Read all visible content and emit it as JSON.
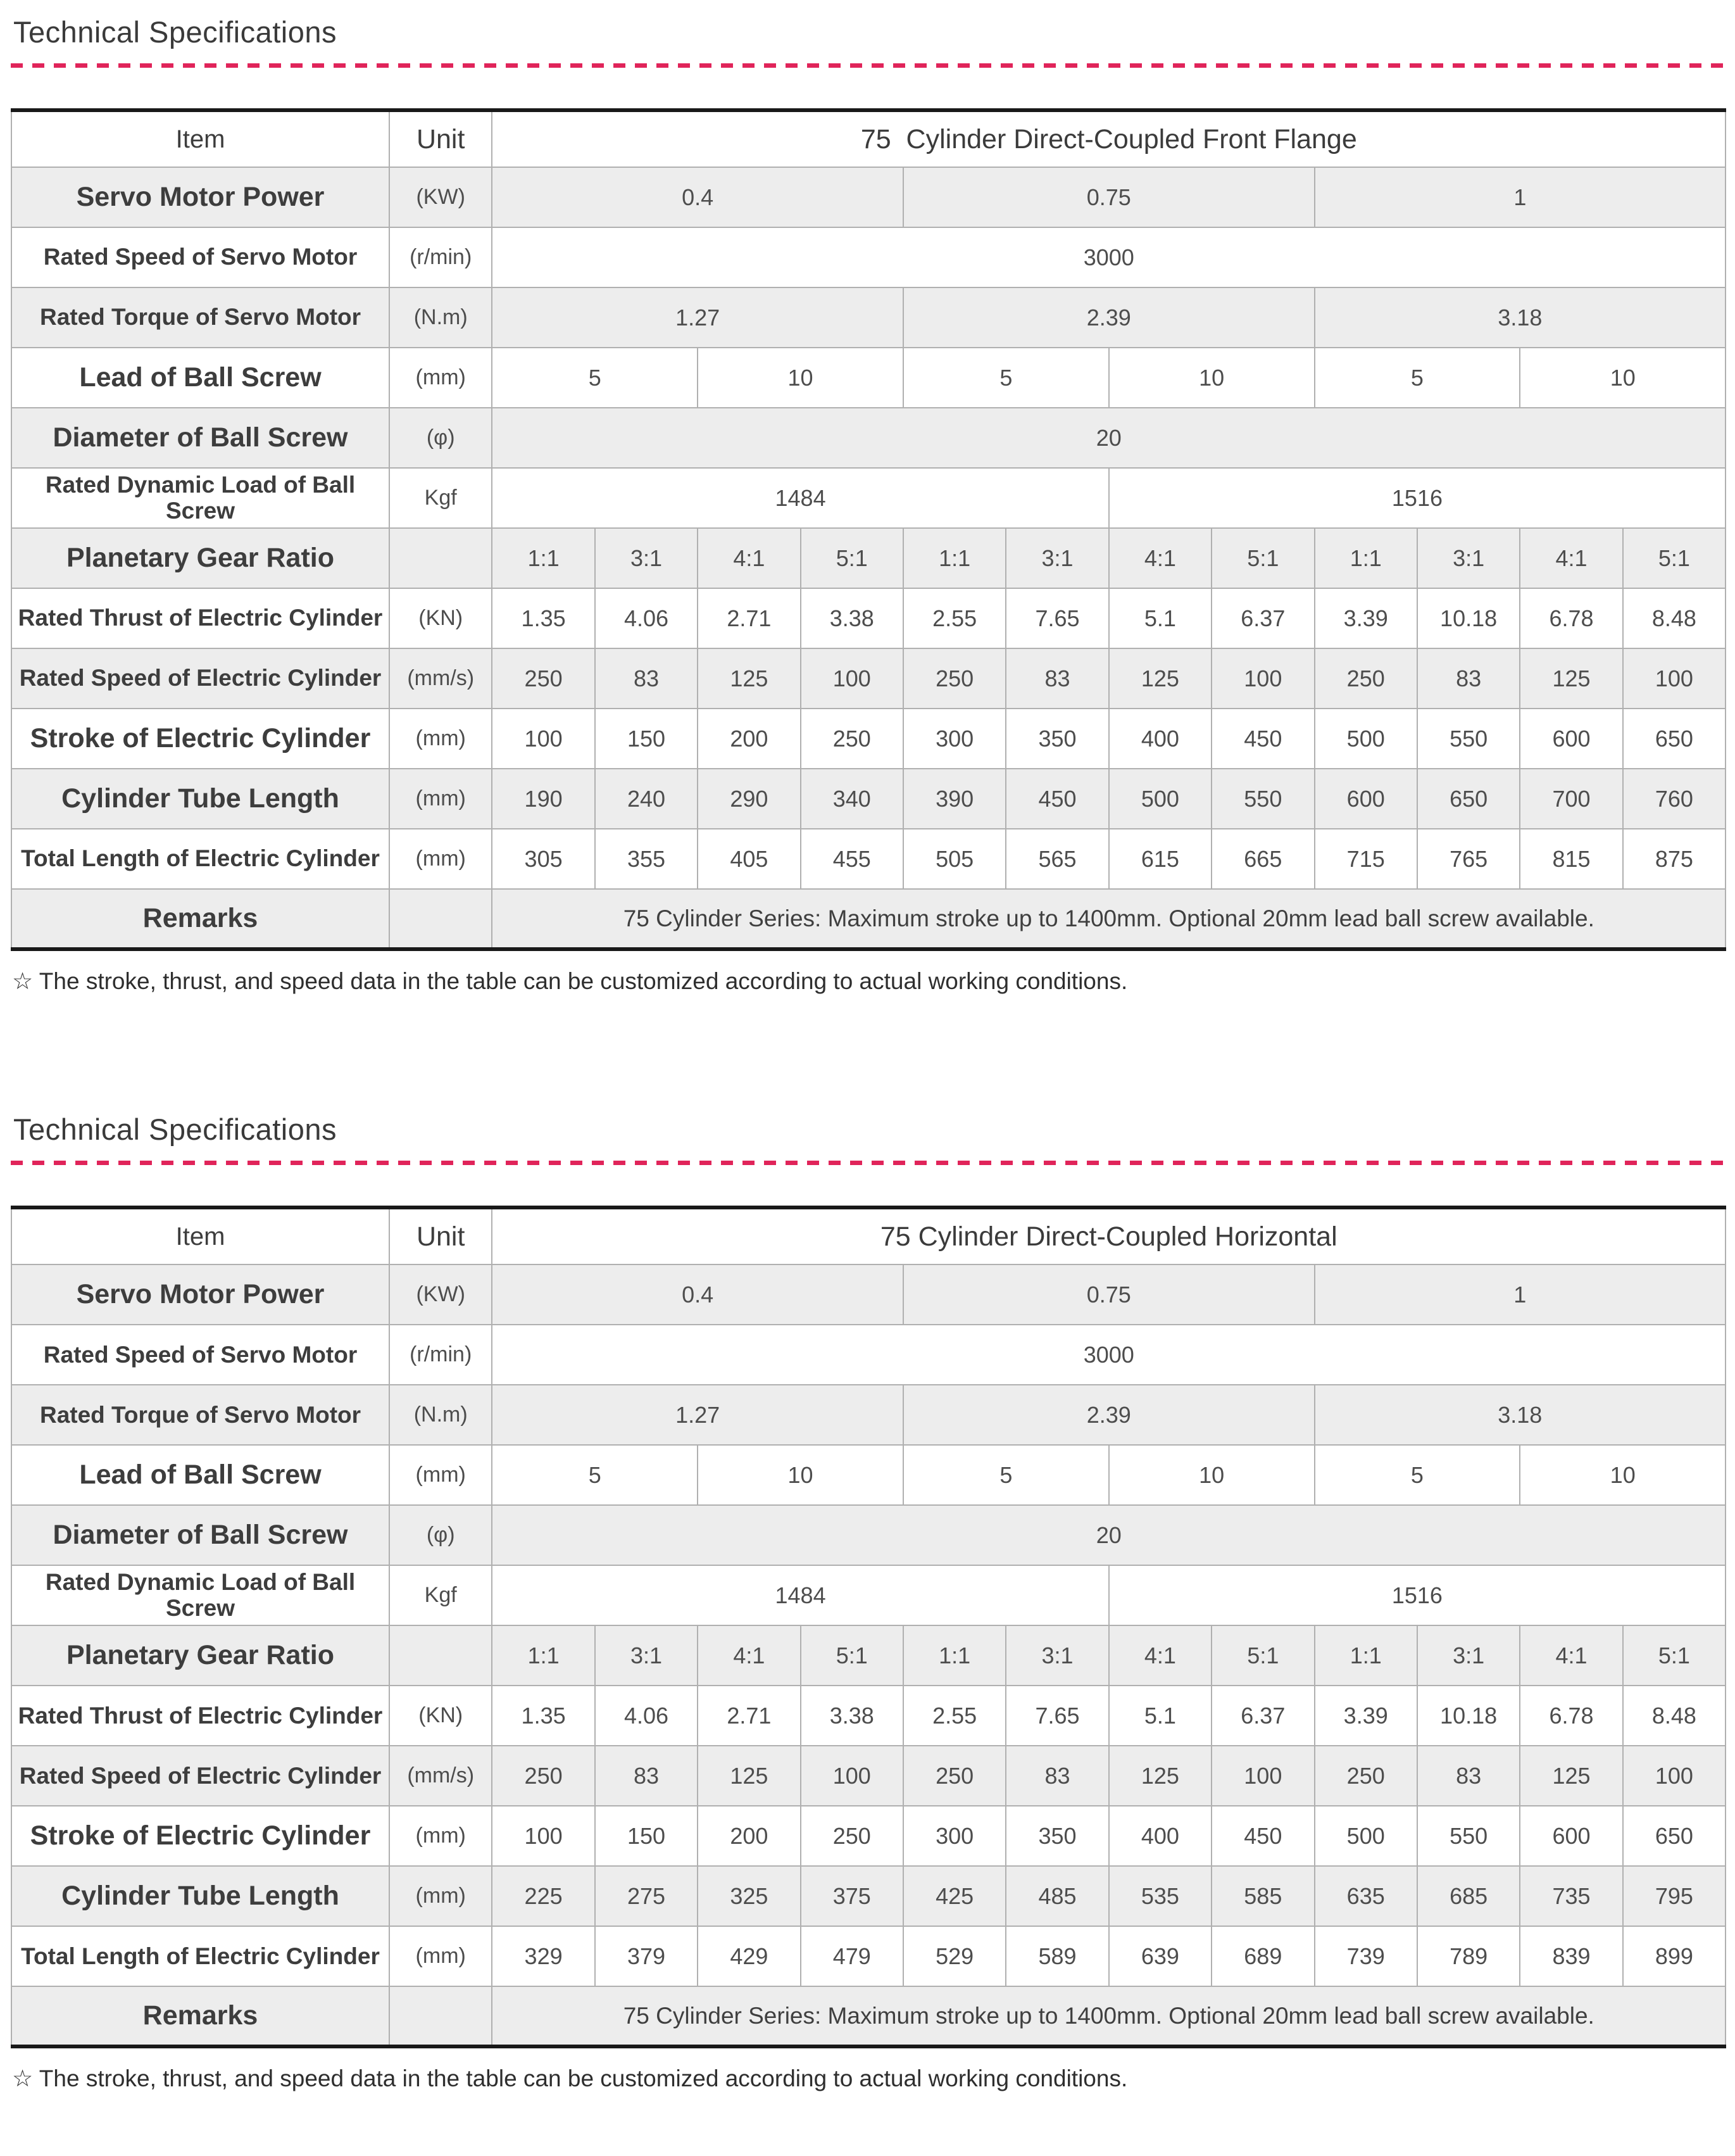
{
  "accent_color": "#e0245a",
  "tables": [
    {
      "section_title": "Technical Specifications",
      "footnote": "☆ The stroke, thrust, and speed data in the table can be customized according to actual working conditions.",
      "header": {
        "item_label": "Item",
        "unit_label": "Unit",
        "series_title": "75  Cylinder Direct-Coupled Front Flange"
      },
      "rows": [
        {
          "label": "Servo Motor Power",
          "size": "lg",
          "unit": "(KW)",
          "cells": [
            {
              "text": "0.4",
              "span": 4
            },
            {
              "text": "0.75",
              "span": 4
            },
            {
              "text": "1",
              "span": 4
            }
          ]
        },
        {
          "label": "Rated Speed of Servo Motor",
          "size": "md",
          "unit": "(r/min)",
          "cells": [
            {
              "text": "3000",
              "span": 12
            }
          ]
        },
        {
          "label": "Rated Torque of Servo Motor",
          "size": "md",
          "unit": "(N.m)",
          "cells": [
            {
              "text": "1.27",
              "span": 4
            },
            {
              "text": "2.39",
              "span": 4
            },
            {
              "text": "3.18",
              "span": 4
            }
          ]
        },
        {
          "label": "Lead of Ball Screw",
          "size": "lg",
          "unit": "(mm)",
          "cells": [
            {
              "text": "5",
              "span": 2
            },
            {
              "text": "10",
              "span": 2
            },
            {
              "text": "5",
              "span": 2
            },
            {
              "text": "10",
              "span": 2
            },
            {
              "text": "5",
              "span": 2
            },
            {
              "text": "10",
              "span": 2
            }
          ]
        },
        {
          "label": "Diameter of Ball Screw",
          "size": "lg",
          "unit": "(φ)",
          "cells": [
            {
              "text": "20",
              "span": 12
            }
          ]
        },
        {
          "label": "Rated Dynamic Load of Ball Screw",
          "size": "md",
          "unit": "Kgf",
          "cells": [
            {
              "text": "1484",
              "span": 6
            },
            {
              "text": "1516",
              "span": 6
            }
          ]
        },
        {
          "label": "Planetary Gear Ratio",
          "size": "lg",
          "unit": "",
          "cells": [
            {
              "text": "1:1",
              "span": 1
            },
            {
              "text": "3:1",
              "span": 1
            },
            {
              "text": "4:1",
              "span": 1
            },
            {
              "text": "5:1",
              "span": 1
            },
            {
              "text": "1:1",
              "span": 1
            },
            {
              "text": "3:1",
              "span": 1
            },
            {
              "text": "4:1",
              "span": 1
            },
            {
              "text": "5:1",
              "span": 1
            },
            {
              "text": "1:1",
              "span": 1
            },
            {
              "text": "3:1",
              "span": 1
            },
            {
              "text": "4:1",
              "span": 1
            },
            {
              "text": "5:1",
              "span": 1
            }
          ]
        },
        {
          "label": "Rated Thrust of Electric Cylinder",
          "size": "md",
          "unit": "(KN)",
          "cells": [
            {
              "text": "1.35",
              "span": 1
            },
            {
              "text": "4.06",
              "span": 1
            },
            {
              "text": "2.71",
              "span": 1
            },
            {
              "text": "3.38",
              "span": 1
            },
            {
              "text": "2.55",
              "span": 1
            },
            {
              "text": "7.65",
              "span": 1
            },
            {
              "text": "5.1",
              "span": 1
            },
            {
              "text": "6.37",
              "span": 1
            },
            {
              "text": "3.39",
              "span": 1
            },
            {
              "text": "10.18",
              "span": 1
            },
            {
              "text": "6.78",
              "span": 1
            },
            {
              "text": "8.48",
              "span": 1
            }
          ]
        },
        {
          "label": "Rated Speed of Electric Cylinder",
          "size": "md",
          "unit": "(mm/s)",
          "cells": [
            {
              "text": "250",
              "span": 1
            },
            {
              "text": "83",
              "span": 1
            },
            {
              "text": "125",
              "span": 1
            },
            {
              "text": "100",
              "span": 1
            },
            {
              "text": "250",
              "span": 1
            },
            {
              "text": "83",
              "span": 1
            },
            {
              "text": "125",
              "span": 1
            },
            {
              "text": "100",
              "span": 1
            },
            {
              "text": "250",
              "span": 1
            },
            {
              "text": "83",
              "span": 1
            },
            {
              "text": "125",
              "span": 1
            },
            {
              "text": "100",
              "span": 1
            }
          ]
        },
        {
          "label": "Stroke of Electric Cylinder",
          "size": "lg",
          "unit": "(mm)",
          "cells": [
            {
              "text": "100",
              "span": 1
            },
            {
              "text": "150",
              "span": 1
            },
            {
              "text": "200",
              "span": 1
            },
            {
              "text": "250",
              "span": 1
            },
            {
              "text": "300",
              "span": 1
            },
            {
              "text": "350",
              "span": 1
            },
            {
              "text": "400",
              "span": 1
            },
            {
              "text": "450",
              "span": 1
            },
            {
              "text": "500",
              "span": 1
            },
            {
              "text": "550",
              "span": 1
            },
            {
              "text": "600",
              "span": 1
            },
            {
              "text": "650",
              "span": 1
            }
          ]
        },
        {
          "label": "Cylinder Tube Length",
          "size": "lg",
          "unit": "(mm)",
          "cells": [
            {
              "text": "190",
              "span": 1
            },
            {
              "text": "240",
              "span": 1
            },
            {
              "text": "290",
              "span": 1
            },
            {
              "text": "340",
              "span": 1
            },
            {
              "text": "390",
              "span": 1
            },
            {
              "text": "450",
              "span": 1
            },
            {
              "text": "500",
              "span": 1
            },
            {
              "text": "550",
              "span": 1
            },
            {
              "text": "600",
              "span": 1
            },
            {
              "text": "650",
              "span": 1
            },
            {
              "text": "700",
              "span": 1
            },
            {
              "text": "760",
              "span": 1
            }
          ]
        },
        {
          "label": "Total Length of Electric Cylinder",
          "size": "md",
          "unit": "(mm)",
          "cells": [
            {
              "text": "305",
              "span": 1
            },
            {
              "text": "355",
              "span": 1
            },
            {
              "text": "405",
              "span": 1
            },
            {
              "text": "455",
              "span": 1
            },
            {
              "text": "505",
              "span": 1
            },
            {
              "text": "565",
              "span": 1
            },
            {
              "text": "615",
              "span": 1
            },
            {
              "text": "665",
              "span": 1
            },
            {
              "text": "715",
              "span": 1
            },
            {
              "text": "765",
              "span": 1
            },
            {
              "text": "815",
              "span": 1
            },
            {
              "text": "875",
              "span": 1
            }
          ]
        }
      ],
      "remarks_label": "Remarks",
      "remarks_text": "75 Cylinder Series: Maximum stroke up to 1400mm. Optional 20mm lead ball screw available."
    },
    {
      "section_title": "Technical Specifications",
      "footnote": "☆ The stroke, thrust, and speed data in the table can be customized according to actual working conditions.",
      "header": {
        "item_label": "Item",
        "unit_label": "Unit",
        "series_title": "75 Cylinder Direct-Coupled Horizontal"
      },
      "rows": [
        {
          "label": "Servo Motor Power",
          "size": "lg",
          "unit": "(KW)",
          "cells": [
            {
              "text": "0.4",
              "span": 4
            },
            {
              "text": "0.75",
              "span": 4
            },
            {
              "text": "1",
              "span": 4
            }
          ]
        },
        {
          "label": "Rated Speed of Servo Motor",
          "size": "md",
          "unit": "(r/min)",
          "cells": [
            {
              "text": "3000",
              "span": 12
            }
          ]
        },
        {
          "label": "Rated Torque of Servo Motor",
          "size": "md",
          "unit": "(N.m)",
          "cells": [
            {
              "text": "1.27",
              "span": 4
            },
            {
              "text": "2.39",
              "span": 4
            },
            {
              "text": "3.18",
              "span": 4
            }
          ]
        },
        {
          "label": "Lead of Ball Screw",
          "size": "lg",
          "unit": "(mm)",
          "cells": [
            {
              "text": "5",
              "span": 2
            },
            {
              "text": "10",
              "span": 2
            },
            {
              "text": "5",
              "span": 2
            },
            {
              "text": "10",
              "span": 2
            },
            {
              "text": "5",
              "span": 2
            },
            {
              "text": "10",
              "span": 2
            }
          ]
        },
        {
          "label": "Diameter of Ball Screw",
          "size": "lg",
          "unit": "(φ)",
          "cells": [
            {
              "text": "20",
              "span": 12
            }
          ]
        },
        {
          "label": "Rated Dynamic Load of Ball Screw",
          "size": "md",
          "unit": "Kgf",
          "cells": [
            {
              "text": "1484",
              "span": 6
            },
            {
              "text": "1516",
              "span": 6
            }
          ]
        },
        {
          "label": "Planetary Gear Ratio",
          "size": "lg",
          "unit": "",
          "cells": [
            {
              "text": "1:1",
              "span": 1
            },
            {
              "text": "3:1",
              "span": 1
            },
            {
              "text": "4:1",
              "span": 1
            },
            {
              "text": "5:1",
              "span": 1
            },
            {
              "text": "1:1",
              "span": 1
            },
            {
              "text": "3:1",
              "span": 1
            },
            {
              "text": "4:1",
              "span": 1
            },
            {
              "text": "5:1",
              "span": 1
            },
            {
              "text": "1:1",
              "span": 1
            },
            {
              "text": "3:1",
              "span": 1
            },
            {
              "text": "4:1",
              "span": 1
            },
            {
              "text": "5:1",
              "span": 1
            }
          ]
        },
        {
          "label": "Rated Thrust of Electric Cylinder",
          "size": "md",
          "unit": "(KN)",
          "cells": [
            {
              "text": "1.35",
              "span": 1
            },
            {
              "text": "4.06",
              "span": 1
            },
            {
              "text": "2.71",
              "span": 1
            },
            {
              "text": "3.38",
              "span": 1
            },
            {
              "text": "2.55",
              "span": 1
            },
            {
              "text": "7.65",
              "span": 1
            },
            {
              "text": "5.1",
              "span": 1
            },
            {
              "text": "6.37",
              "span": 1
            },
            {
              "text": "3.39",
              "span": 1
            },
            {
              "text": "10.18",
              "span": 1
            },
            {
              "text": "6.78",
              "span": 1
            },
            {
              "text": "8.48",
              "span": 1
            }
          ]
        },
        {
          "label": "Rated Speed of Electric Cylinder",
          "size": "md",
          "unit": "(mm/s)",
          "cells": [
            {
              "text": "250",
              "span": 1
            },
            {
              "text": "83",
              "span": 1
            },
            {
              "text": "125",
              "span": 1
            },
            {
              "text": "100",
              "span": 1
            },
            {
              "text": "250",
              "span": 1
            },
            {
              "text": "83",
              "span": 1
            },
            {
              "text": "125",
              "span": 1
            },
            {
              "text": "100",
              "span": 1
            },
            {
              "text": "250",
              "span": 1
            },
            {
              "text": "83",
              "span": 1
            },
            {
              "text": "125",
              "span": 1
            },
            {
              "text": "100",
              "span": 1
            }
          ]
        },
        {
          "label": "Stroke of Electric Cylinder",
          "size": "lg",
          "unit": "(mm)",
          "cells": [
            {
              "text": "100",
              "span": 1
            },
            {
              "text": "150",
              "span": 1
            },
            {
              "text": "200",
              "span": 1
            },
            {
              "text": "250",
              "span": 1
            },
            {
              "text": "300",
              "span": 1
            },
            {
              "text": "350",
              "span": 1
            },
            {
              "text": "400",
              "span": 1
            },
            {
              "text": "450",
              "span": 1
            },
            {
              "text": "500",
              "span": 1
            },
            {
              "text": "550",
              "span": 1
            },
            {
              "text": "600",
              "span": 1
            },
            {
              "text": "650",
              "span": 1
            }
          ]
        },
        {
          "label": "Cylinder Tube Length",
          "size": "lg",
          "unit": "(mm)",
          "cells": [
            {
              "text": "225",
              "span": 1
            },
            {
              "text": "275",
              "span": 1
            },
            {
              "text": "325",
              "span": 1
            },
            {
              "text": "375",
              "span": 1
            },
            {
              "text": "425",
              "span": 1
            },
            {
              "text": "485",
              "span": 1
            },
            {
              "text": "535",
              "span": 1
            },
            {
              "text": "585",
              "span": 1
            },
            {
              "text": "635",
              "span": 1
            },
            {
              "text": "685",
              "span": 1
            },
            {
              "text": "735",
              "span": 1
            },
            {
              "text": "795",
              "span": 1
            }
          ]
        },
        {
          "label": "Total Length of Electric Cylinder",
          "size": "md",
          "unit": "(mm)",
          "cells": [
            {
              "text": "329",
              "span": 1
            },
            {
              "text": "379",
              "span": 1
            },
            {
              "text": "429",
              "span": 1
            },
            {
              "text": "479",
              "span": 1
            },
            {
              "text": "529",
              "span": 1
            },
            {
              "text": "589",
              "span": 1
            },
            {
              "text": "639",
              "span": 1
            },
            {
              "text": "689",
              "span": 1
            },
            {
              "text": "739",
              "span": 1
            },
            {
              "text": "789",
              "span": 1
            },
            {
              "text": "839",
              "span": 1
            },
            {
              "text": "899",
              "span": 1
            }
          ]
        }
      ],
      "remarks_label": "Remarks",
      "remarks_text": "75 Cylinder Series: Maximum stroke up to 1400mm. Optional 20mm lead ball screw available."
    }
  ]
}
